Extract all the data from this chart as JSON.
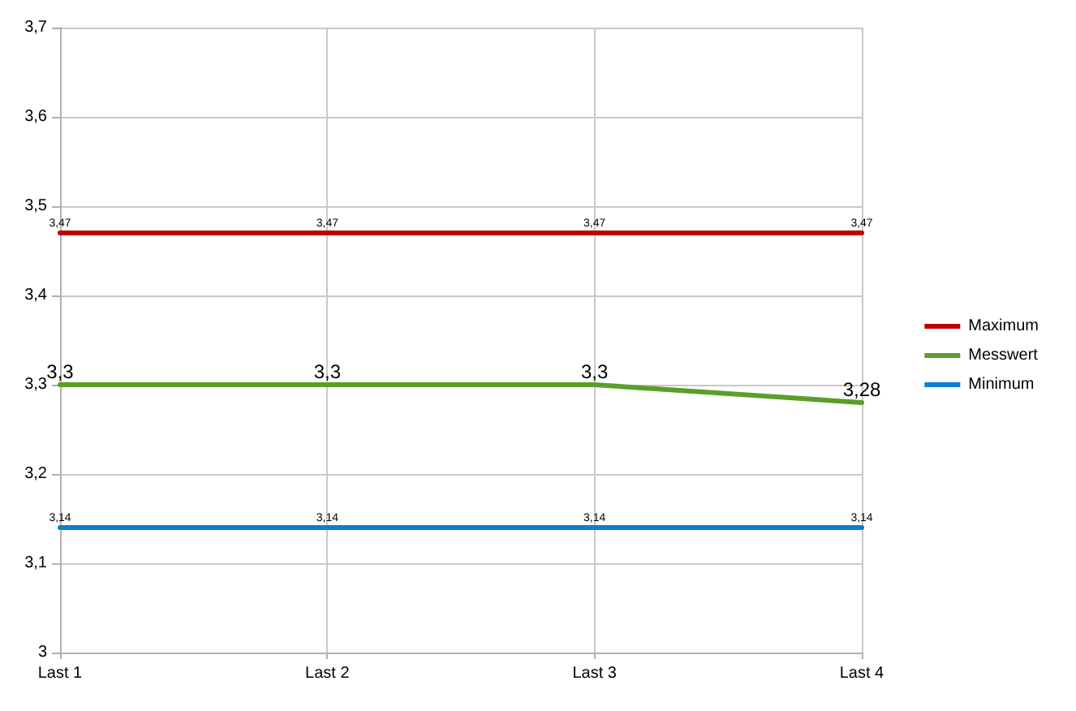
{
  "chart_data": {
    "type": "line",
    "categories": [
      "Last 1",
      "Last 2",
      "Last 3",
      "Last 4"
    ],
    "series": [
      {
        "name": "Maximum",
        "color": "#c00000",
        "values": [
          3.47,
          3.47,
          3.47,
          3.47
        ],
        "value_labels": [
          "3,47",
          "3,47",
          "3,47",
          "3,47"
        ]
      },
      {
        "name": "Messwert",
        "color": "#5a9e2a",
        "values": [
          3.3,
          3.3,
          3.3,
          3.28
        ],
        "value_labels": [
          "3,3",
          "3,3",
          "3,3",
          "3,28"
        ]
      },
      {
        "name": "Minimum",
        "color": "#0a7fd0",
        "values": [
          3.14,
          3.14,
          3.14,
          3.14
        ],
        "value_labels": [
          "3,14",
          "3,14",
          "3,14",
          "3,14"
        ]
      }
    ],
    "ylim": [
      3,
      3.7
    ],
    "yticks": [
      3,
      {
        "value": 3.1,
        "label": "3,1"
      },
      {
        "value": 3.2,
        "label": "3,2"
      },
      {
        "value": 3.3,
        "label": "3,3"
      },
      {
        "value": 3.4,
        "label": "3,4"
      },
      {
        "value": 3.5,
        "label": "3,5"
      },
      {
        "value": 3.6,
        "label": "3,6"
      },
      {
        "value": 3.7,
        "label": "3,7"
      }
    ],
    "grid": true,
    "legend": "right",
    "marker": "none",
    "line_style": "solid"
  }
}
